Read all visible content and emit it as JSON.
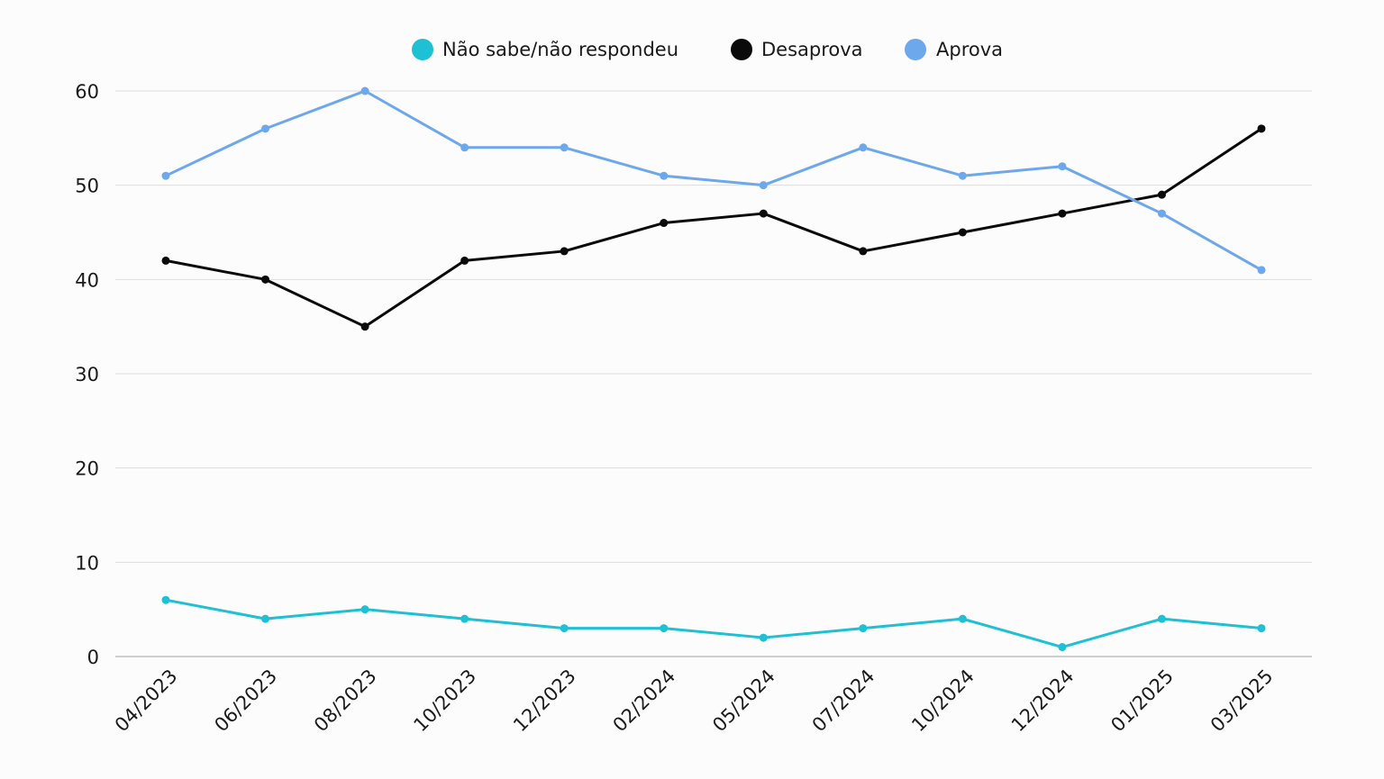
{
  "chart_data": {
    "type": "line",
    "categories": [
      "04/2023",
      "06/2023",
      "08/2023",
      "10/2023",
      "12/2023",
      "02/2024",
      "05/2024",
      "07/2024",
      "10/2024",
      "12/2024",
      "01/2025",
      "03/2025"
    ],
    "series": [
      {
        "name": "Não sabe/não respondeu",
        "color": "#1ec0d3",
        "values": [
          6,
          4,
          5,
          4,
          3,
          3,
          2,
          3,
          4,
          1,
          4,
          3
        ]
      },
      {
        "name": "Desaprova",
        "color": "#0a0a0a",
        "values": [
          42,
          40,
          35,
          42,
          43,
          46,
          47,
          43,
          45,
          47,
          49,
          56
        ]
      },
      {
        "name": "Aprova",
        "color": "#6ea8ec",
        "values": [
          51,
          56,
          60,
          54,
          54,
          51,
          50,
          54,
          51,
          52,
          47,
          41
        ]
      }
    ],
    "yticks": [
      "0",
      "10",
      "20",
      "30",
      "40",
      "50",
      "60"
    ],
    "ylim": [
      0,
      60
    ],
    "grid": true,
    "legend": "top-center"
  }
}
